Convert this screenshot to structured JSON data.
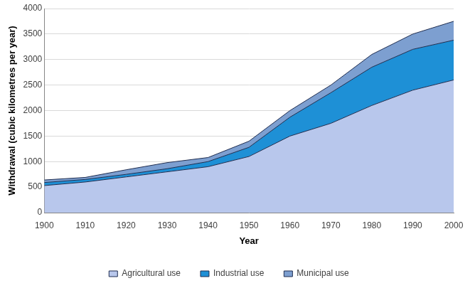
{
  "chart_data": {
    "type": "area",
    "x": [
      1900,
      1910,
      1920,
      1930,
      1940,
      1950,
      1960,
      1970,
      1980,
      1990,
      2000
    ],
    "series": [
      {
        "name": "Agricultural use",
        "color": "#b8c7ec",
        "values": [
          530,
          600,
          700,
          800,
          900,
          1100,
          1500,
          1750,
          2100,
          2400,
          2600
        ]
      },
      {
        "name": "Industrial use",
        "color": "#1e90d6",
        "values": [
          60,
          50,
          50,
          60,
          100,
          180,
          370,
          600,
          750,
          800,
          780
        ]
      },
      {
        "name": "Municipal use",
        "color": "#7d9fd0",
        "values": [
          50,
          40,
          90,
          120,
          80,
          120,
          130,
          150,
          250,
          300,
          370
        ]
      }
    ],
    "x_label": "Year",
    "y_label": "Withdrawal (cubic kilometres per year)",
    "xlim": [
      1900,
      2000
    ],
    "xticks": [
      1900,
      1910,
      1920,
      1930,
      1940,
      1950,
      1960,
      1970,
      1980,
      1990,
      2000
    ],
    "ylim": [
      0,
      4000
    ],
    "yticks": [
      0,
      500,
      1000,
      1500,
      2000,
      2500,
      3000,
      3500,
      4000
    ],
    "stacked": true,
    "grid": true,
    "legend": "bottom"
  }
}
